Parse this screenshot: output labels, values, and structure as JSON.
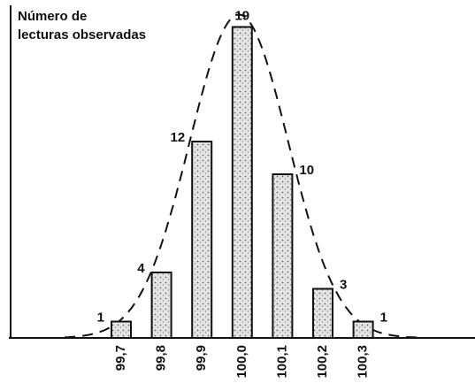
{
  "chart_data": {
    "type": "bar",
    "y_label": [
      "Número de",
      "lecturas observadas"
    ],
    "categories": [
      "99,7",
      "99,8",
      "99,9",
      "100,0",
      "100,1",
      "100,2",
      "100,3"
    ],
    "values": [
      1,
      4,
      12,
      19,
      10,
      3,
      1
    ],
    "ylim": [
      0,
      20
    ],
    "color": "#999999"
  }
}
